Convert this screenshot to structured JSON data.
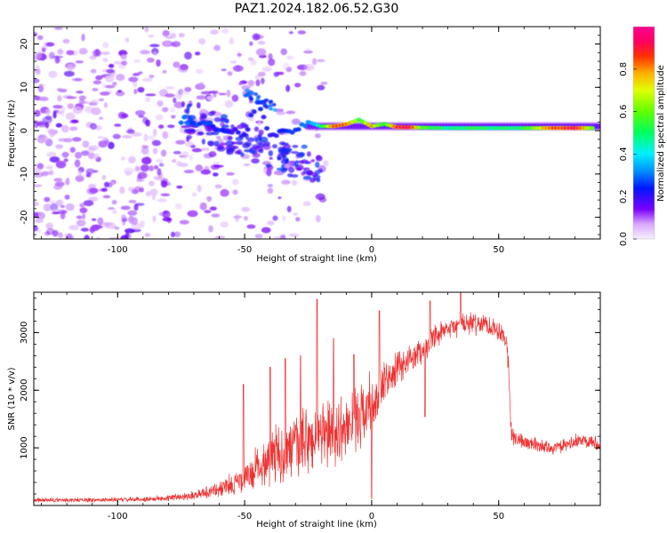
{
  "figure": {
    "title": "PAZ1.2024.182.06.52.G30"
  },
  "chart_data": [
    {
      "type": "heatmap",
      "xlabel": "Height of straight line (km)",
      "ylabel": "Frequency (Hz)",
      "xlim": [
        -133,
        90
      ],
      "ylim": [
        -25,
        24
      ],
      "xticks": [
        -100,
        -50,
        0,
        50
      ],
      "yticks": [
        -20,
        -10,
        0,
        10,
        20
      ],
      "colorbar": {
        "label": "Normalized spectral amplitude",
        "range": [
          0,
          1
        ],
        "ticks": [
          "0.0",
          "0.2",
          "0.4",
          "0.6",
          "0.8"
        ],
        "tick_values": [
          0,
          0.2,
          0.4,
          0.6,
          0.8
        ]
      },
      "ridge": [
        {
          "x": -75,
          "y": 2.5,
          "v": 0.35
        },
        {
          "x": -70,
          "y": 2.0,
          "v": 0.32
        },
        {
          "x": -65,
          "y": 1.5,
          "v": 0.3
        },
        {
          "x": -60,
          "y": 0.5,
          "v": 0.28
        },
        {
          "x": -55,
          "y": 0.0,
          "v": 0.26
        },
        {
          "x": -50,
          "y": -1.0,
          "v": 0.25
        },
        {
          "x": -45,
          "y": 7.0,
          "v": 0.28
        },
        {
          "x": -40,
          "y": -1.5,
          "v": 0.25
        },
        {
          "x": -35,
          "y": -0.5,
          "v": 0.28
        },
        {
          "x": -30,
          "y": 0.5,
          "v": 0.3
        },
        {
          "x": -25,
          "y": 2.0,
          "v": 0.35
        },
        {
          "x": -20,
          "y": 1.0,
          "v": 0.5
        },
        {
          "x": -15,
          "y": 1.0,
          "v": 0.9
        },
        {
          "x": -10,
          "y": 1.5,
          "v": 0.85
        },
        {
          "x": -5,
          "y": 2.5,
          "v": 0.6
        },
        {
          "x": 0,
          "y": 1.0,
          "v": 0.8
        },
        {
          "x": 5,
          "y": 1.5,
          "v": 0.55
        },
        {
          "x": 10,
          "y": 0.8,
          "v": 0.95
        },
        {
          "x": 15,
          "y": 0.8,
          "v": 0.98
        },
        {
          "x": 20,
          "y": 0.7,
          "v": 0.6
        },
        {
          "x": 30,
          "y": 0.6,
          "v": 0.5
        },
        {
          "x": 40,
          "y": 0.6,
          "v": 0.55
        },
        {
          "x": 50,
          "y": 0.6,
          "v": 0.5
        },
        {
          "x": 60,
          "y": 0.6,
          "v": 0.55
        },
        {
          "x": 70,
          "y": 0.6,
          "v": 0.85
        },
        {
          "x": 80,
          "y": 0.6,
          "v": 0.95
        },
        {
          "x": 88,
          "y": 0.6,
          "v": 0.6
        }
      ]
    },
    {
      "type": "line",
      "xlabel": "Height of straight line (km)",
      "ylabel": "SNR (10 * v/v)",
      "xlim": [
        -133,
        90
      ],
      "ylim": [
        0,
        3700
      ],
      "xticks": [
        -100,
        -50,
        0,
        50
      ],
      "yticks": [
        1000,
        2000,
        3000
      ],
      "color": "#ee3333",
      "envelope": {
        "x": [
          -133,
          -110,
          -90,
          -80,
          -70,
          -60,
          -50,
          -45,
          -40,
          -35,
          -30,
          -25,
          -22,
          -20,
          -15,
          -10,
          -5,
          -2,
          0,
          2,
          5,
          10,
          15,
          20,
          22,
          25,
          30,
          35,
          40,
          45,
          50,
          53,
          54,
          55,
          60,
          65,
          70,
          75,
          80,
          85,
          90
        ],
        "mean": [
          90,
          95,
          105,
          130,
          180,
          280,
          450,
          650,
          850,
          900,
          1000,
          1100,
          1150,
          1200,
          1250,
          1350,
          1550,
          1700,
          1750,
          1850,
          2100,
          2350,
          2550,
          2700,
          2750,
          2900,
          3050,
          3150,
          3150,
          3150,
          3050,
          2900,
          2400,
          1200,
          1100,
          1050,
          1000,
          1020,
          1100,
          1150,
          1050
        ],
        "amp": [
          50,
          45,
          50,
          60,
          90,
          170,
          300,
          450,
          550,
          600,
          650,
          700,
          750,
          700,
          650,
          600,
          600,
          650,
          700,
          550,
          450,
          350,
          300,
          250,
          250,
          250,
          220,
          220,
          220,
          220,
          220,
          250,
          300,
          200,
          150,
          150,
          130,
          130,
          150,
          150,
          150
        ]
      },
      "peaks": [
        {
          "x": -50.5,
          "y": 2100
        },
        {
          "x": -40,
          "y": 2400
        },
        {
          "x": -34,
          "y": 2550
        },
        {
          "x": -28,
          "y": 2600
        },
        {
          "x": -21.5,
          "y": 3580
        },
        {
          "x": -15,
          "y": 2900
        },
        {
          "x": -7,
          "y": 2620
        },
        {
          "x": 3,
          "y": 3380
        },
        {
          "x": 23,
          "y": 3550
        },
        {
          "x": 35,
          "y": 3700
        },
        {
          "x": 0,
          "y": 120
        },
        {
          "x": 21,
          "y": 1540
        }
      ]
    }
  ]
}
